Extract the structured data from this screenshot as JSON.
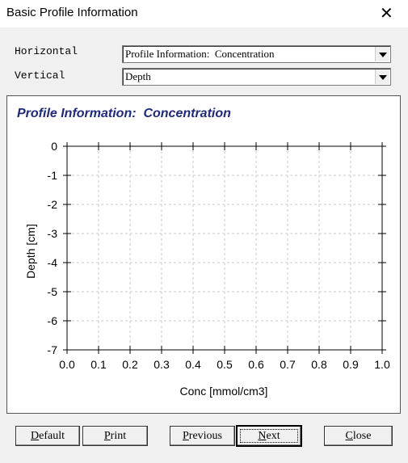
{
  "window": {
    "title": "Basic Profile Information"
  },
  "fields": [
    {
      "label": "Horizontal",
      "value": "Profile Information:  Concentration"
    },
    {
      "label": "Vertical",
      "value": "Depth"
    }
  ],
  "chart_data": {
    "type": "line",
    "title": "Profile Information:  Concentration",
    "xlabel": "Conc [mmol/cm3]",
    "ylabel": "Depth [cm]",
    "xlim": [
      0,
      1
    ],
    "ylim": [
      -7,
      0
    ],
    "xticks": [
      {
        "value": 0,
        "label": "0.0"
      },
      0.1,
      0.2,
      0.3,
      0.4,
      0.5,
      0.6,
      0.7,
      0.8,
      0.9,
      {
        "value": 1,
        "label": "1.0"
      }
    ],
    "yticks": [
      0,
      -1,
      -2,
      -3,
      -4,
      -5,
      -6,
      -7
    ],
    "grid": true,
    "series": []
  },
  "buttons": [
    "Default",
    "Print",
    "Previous",
    "Next",
    "Close"
  ]
}
